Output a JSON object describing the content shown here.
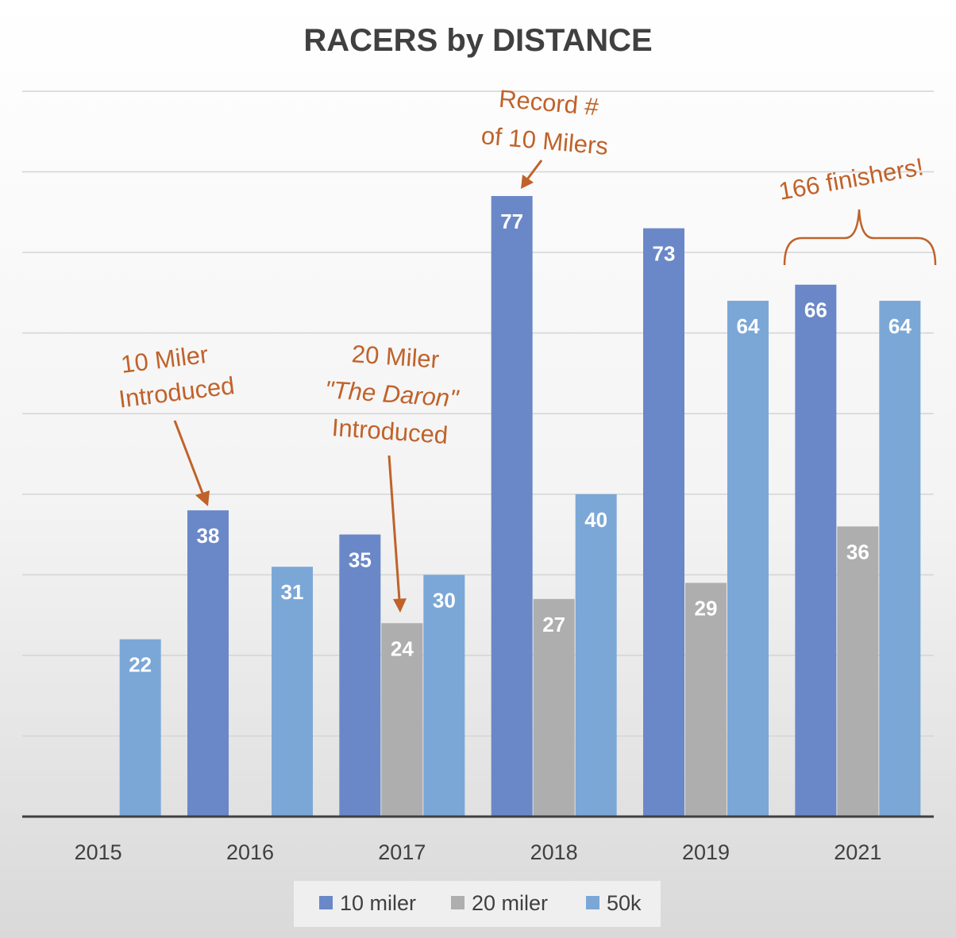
{
  "chart_data": {
    "type": "bar",
    "title": "RACERS by DISTANCE",
    "categories": [
      "2015",
      "2016",
      "2017",
      "2018",
      "2019",
      "2021"
    ],
    "series": [
      {
        "name": "10 miler",
        "color": "#6a88c8",
        "values": [
          null,
          38,
          35,
          77,
          73,
          66
        ]
      },
      {
        "name": "20 miler",
        "color": "#aeaeae",
        "values": [
          null,
          null,
          24,
          27,
          29,
          36
        ]
      },
      {
        "name": "50k",
        "color": "#7ba7d7",
        "values": [
          22,
          31,
          30,
          40,
          64,
          64
        ]
      }
    ],
    "ylim": [
      0,
      90
    ],
    "grid": true,
    "legend": "bottom",
    "annotations": {
      "ten_miler": [
        "10 Miler",
        "Introduced"
      ],
      "twenty_miler": [
        "20 Miler",
        "\"The Daron\"",
        "Introduced"
      ],
      "record": [
        "Record #",
        "of 10 Milers"
      ],
      "finishers": "166 finishers!"
    },
    "annotation_color": "#c0622a"
  }
}
